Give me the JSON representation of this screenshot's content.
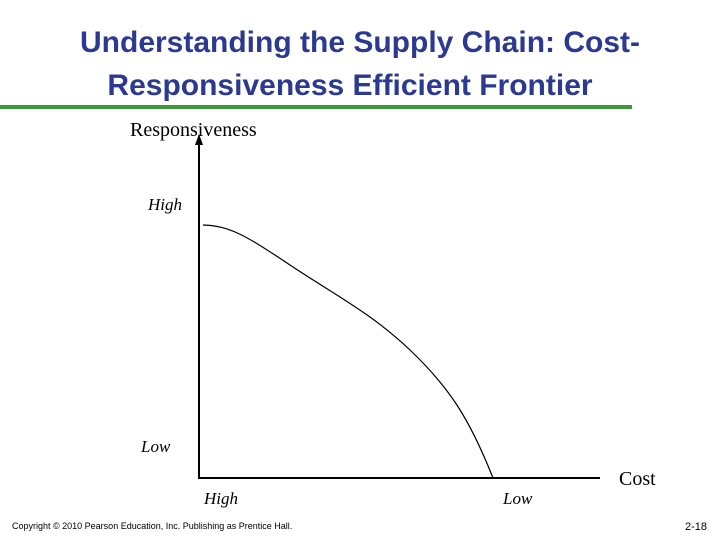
{
  "header": {
    "title_lines": [
      "Understanding the Supply Chain: Cost-",
      "Responsiveness Efficient Frontier"
    ]
  },
  "axes": {
    "y_label": "Responsiveness",
    "y_high": "High",
    "y_low": "Low",
    "x_label": "Cost",
    "x_high": "High",
    "x_low": "Low"
  },
  "footer": {
    "copyright": "Copyright © 2010 Pearson Education, Inc. Publishing as Prentice Hall.",
    "page": "2-18"
  }
}
